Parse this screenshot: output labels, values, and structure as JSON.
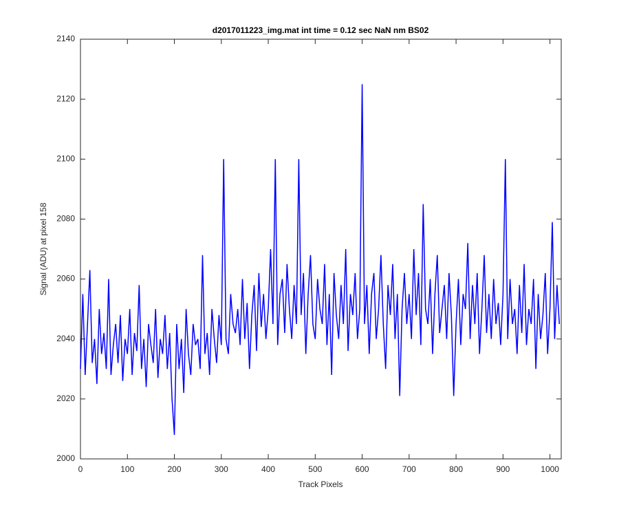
{
  "chart_data": {
    "type": "line",
    "title": "d2017011223_img.mat int time = 0.12 sec  NaN nm BS02",
    "x_label": "Track Pixels",
    "y_label": "Signal (ADU) at pixel 158",
    "xlim": [
      0,
      1024
    ],
    "ylim": [
      2000,
      2140
    ],
    "xticks": [
      0,
      100,
      200,
      300,
      400,
      500,
      600,
      700,
      800,
      900,
      1000
    ],
    "yticks": [
      2000,
      2020,
      2040,
      2060,
      2080,
      2100,
      2120,
      2140
    ],
    "grid": false,
    "x": [
      0,
      5,
      10,
      15,
      20,
      25,
      30,
      35,
      40,
      45,
      50,
      55,
      60,
      65,
      70,
      75,
      80,
      85,
      90,
      95,
      100,
      105,
      110,
      115,
      120,
      125,
      130,
      135,
      140,
      145,
      150,
      155,
      160,
      165,
      170,
      175,
      180,
      185,
      190,
      195,
      200,
      205,
      210,
      215,
      220,
      225,
      230,
      235,
      240,
      245,
      250,
      255,
      260,
      265,
      270,
      275,
      280,
      285,
      290,
      295,
      300,
      305,
      310,
      315,
      320,
      325,
      330,
      335,
      340,
      345,
      350,
      355,
      360,
      365,
      370,
      375,
      380,
      385,
      390,
      395,
      400,
      405,
      410,
      415,
      420,
      425,
      430,
      435,
      440,
      445,
      450,
      455,
      460,
      465,
      470,
      475,
      480,
      485,
      490,
      495,
      500,
      505,
      510,
      515,
      520,
      525,
      530,
      535,
      540,
      545,
      550,
      555,
      560,
      565,
      570,
      575,
      580,
      585,
      590,
      595,
      600,
      605,
      610,
      615,
      620,
      625,
      630,
      635,
      640,
      645,
      650,
      655,
      660,
      665,
      670,
      675,
      680,
      685,
      690,
      695,
      700,
      705,
      710,
      715,
      720,
      725,
      730,
      735,
      740,
      745,
      750,
      755,
      760,
      765,
      770,
      775,
      780,
      785,
      790,
      795,
      800,
      805,
      810,
      815,
      820,
      825,
      830,
      835,
      840,
      845,
      850,
      855,
      860,
      865,
      870,
      875,
      880,
      885,
      890,
      895,
      900,
      905,
      910,
      915,
      920,
      925,
      930,
      935,
      940,
      945,
      950,
      955,
      960,
      965,
      970,
      975,
      980,
      985,
      990,
      995,
      1000,
      1005,
      1010,
      1015,
      1020
    ],
    "series": [
      {
        "name": "signal",
        "color": "#0000ff",
        "values": [
          2030,
          2055,
          2028,
          2045,
          2063,
          2032,
          2040,
          2025,
          2050,
          2035,
          2042,
          2030,
          2060,
          2028,
          2038,
          2045,
          2032,
          2048,
          2026,
          2040,
          2035,
          2050,
          2028,
          2042,
          2036,
          2058,
          2030,
          2040,
          2024,
          2045,
          2038,
          2032,
          2050,
          2027,
          2040,
          2035,
          2048,
          2030,
          2042,
          2020,
          2008,
          2045,
          2030,
          2040,
          2022,
          2050,
          2035,
          2028,
          2045,
          2038,
          2040,
          2030,
          2068,
          2035,
          2042,
          2028,
          2050,
          2040,
          2032,
          2048,
          2038,
          2100,
          2040,
          2035,
          2055,
          2045,
          2042,
          2050,
          2038,
          2060,
          2040,
          2052,
          2030,
          2048,
          2058,
          2036,
          2062,
          2044,
          2055,
          2040,
          2050,
          2070,
          2045,
          2100,
          2038,
          2055,
          2060,
          2042,
          2065,
          2050,
          2040,
          2058,
          2045,
          2100,
          2048,
          2062,
          2035,
          2055,
          2068,
          2045,
          2040,
          2060,
          2050,
          2045,
          2065,
          2038,
          2055,
          2028,
          2062,
          2048,
          2040,
          2058,
          2045,
          2070,
          2036,
          2055,
          2048,
          2062,
          2040,
          2050,
          2125,
          2045,
          2058,
          2035,
          2055,
          2062,
          2040,
          2050,
          2068,
          2045,
          2030,
          2058,
          2048,
          2065,
          2040,
          2055,
          2021,
          2050,
          2062,
          2045,
          2055,
          2040,
          2070,
          2048,
          2062,
          2038,
          2085,
          2050,
          2045,
          2060,
          2035,
          2055,
          2068,
          2042,
          2050,
          2058,
          2040,
          2062,
          2048,
          2021,
          2045,
          2060,
          2038,
          2055,
          2050,
          2072,
          2040,
          2058,
          2045,
          2062,
          2035,
          2050,
          2068,
          2042,
          2055,
          2040,
          2060,
          2045,
          2052,
          2038,
          2055,
          2100,
          2040,
          2060,
          2045,
          2050,
          2035,
          2058,
          2042,
          2065,
          2038,
          2050,
          2045,
          2060,
          2030,
          2055,
          2040,
          2048,
          2062,
          2035,
          2050,
          2079,
          2040,
          2058,
          2045
        ]
      }
    ]
  }
}
